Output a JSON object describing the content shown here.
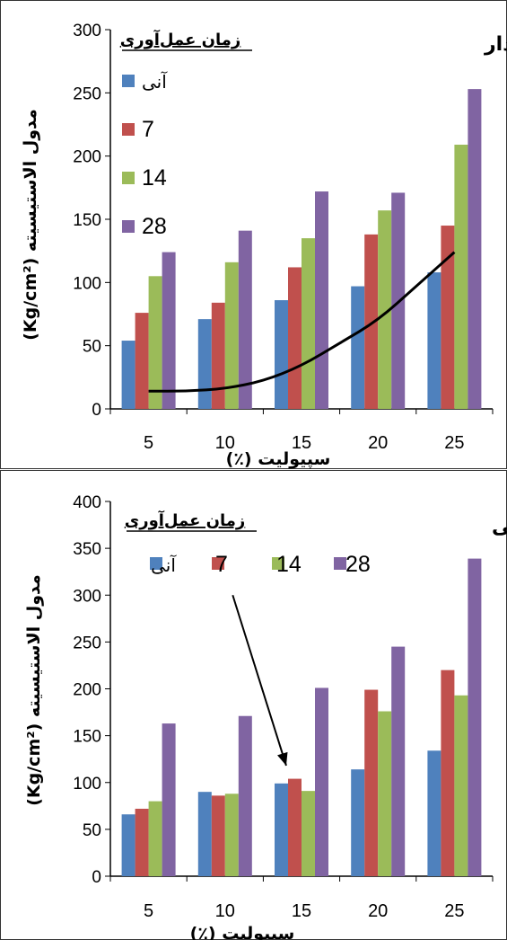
{
  "chart_data": [
    {
      "type": "bar",
      "title": "(د) رس ماسه‌دار",
      "legend_title": "زمان عمل‌آوری",
      "xlabel": "سپیولیت (٪)",
      "ylabel": "مدول الاستیسیته (Kg/cm²)",
      "categories": [
        "5",
        "10",
        "15",
        "20",
        "25"
      ],
      "ylim": [
        0,
        300
      ],
      "yticks": [
        "0",
        "50",
        "100",
        "150",
        "200",
        "250",
        "300"
      ],
      "legend_position": "top-left",
      "series": [
        {
          "name": "آنی",
          "color": "#4F81BD",
          "values": [
            54,
            71,
            86,
            97,
            108
          ]
        },
        {
          "name": "7",
          "color": "#C0504D",
          "values": [
            76,
            84,
            112,
            138,
            145
          ]
        },
        {
          "name": "14",
          "color": "#9BBB59",
          "values": [
            105,
            116,
            135,
            157,
            209
          ]
        },
        {
          "name": "28",
          "color": "#8064A2",
          "values": [
            124,
            141,
            172,
            171,
            253
          ]
        }
      ],
      "trend_curve": {
        "color": "#000000",
        "x": [
          0,
          0.5,
          1,
          1.5,
          2,
          2.5,
          3,
          3.5,
          4
        ],
        "y": [
          14,
          14,
          16,
          22,
          34,
          52,
          70,
          97,
          124
        ]
      }
    },
    {
      "type": "bar",
      "title": "(ج) ماسه رسی",
      "legend_title": "زمان عمل‌آوری",
      "xlabel": "سپیولیت (٪)",
      "ylabel": "مدول الاستیسیته (Kg/cm²)",
      "categories": [
        "5",
        "10",
        "15",
        "20",
        "25"
      ],
      "ylim": [
        0,
        400
      ],
      "yticks": [
        "0",
        "50",
        "100",
        "150",
        "200",
        "250",
        "300",
        "350",
        "400"
      ],
      "legend_position": "top",
      "series": [
        {
          "name": "آنی",
          "color": "#4F81BD",
          "values": [
            66,
            90,
            99,
            114,
            134
          ]
        },
        {
          "name": "7",
          "color": "#C0504D",
          "values": [
            72,
            86,
            104,
            199,
            220
          ]
        },
        {
          "name": "14",
          "color": "#9BBB59",
          "values": [
            80,
            88,
            91,
            176,
            193
          ]
        },
        {
          "name": "28",
          "color": "#8064A2",
          "values": [
            163,
            171,
            201,
            245,
            339
          ]
        }
      ],
      "arrow": {
        "color": "#000000",
        "from_category_index": 1.6,
        "from_value": 300,
        "to_category_index": 2.3,
        "to_value": 118
      }
    }
  ]
}
